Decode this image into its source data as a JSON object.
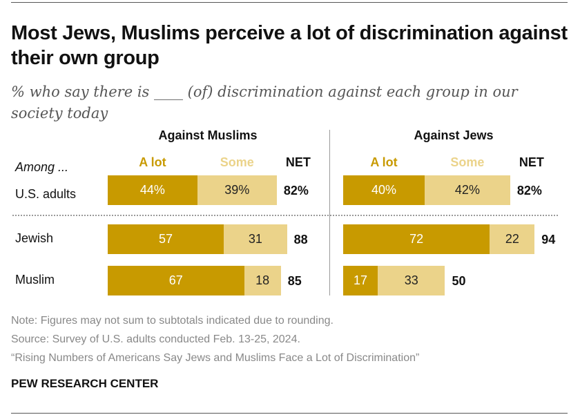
{
  "title": "Most Jews, Muslims perceive a lot of discrimination against their own group",
  "subtitle": "% who say there is ____ (of) discrimination against each group in our society today",
  "row_header": "Among ...",
  "chart_data": {
    "type": "bar",
    "orientation": "horizontal-stacked",
    "categories": [
      "U.S. adults",
      "Jewish",
      "Muslim"
    ],
    "legend": [
      "A lot",
      "Some"
    ],
    "net_label": "NET",
    "colors": {
      "A lot": "#C89A00",
      "Some": "#EBD38A"
    },
    "panels": [
      {
        "title": "Against Muslims",
        "series": [
          {
            "name": "A lot",
            "values": [
              44,
              57,
              67
            ]
          },
          {
            "name": "Some",
            "values": [
              39,
              31,
              18
            ]
          }
        ],
        "net": [
          82,
          88,
          85
        ]
      },
      {
        "title": "Against Jews",
        "series": [
          {
            "name": "A lot",
            "values": [
              40,
              72,
              17
            ]
          },
          {
            "name": "Some",
            "values": [
              42,
              22,
              33
            ]
          }
        ],
        "net": [
          82,
          94,
          50
        ]
      }
    ],
    "percent_first_row": true
  },
  "notes": [
    "Note: Figures may not sum to subtotals indicated due to rounding.",
    "Source: Survey of U.S. adults conducted Feb. 13-25, 2024.",
    "“Rising Numbers of Americans Say Jews and Muslims Face a Lot of Discrimination”"
  ],
  "brand": "PEW RESEARCH CENTER"
}
